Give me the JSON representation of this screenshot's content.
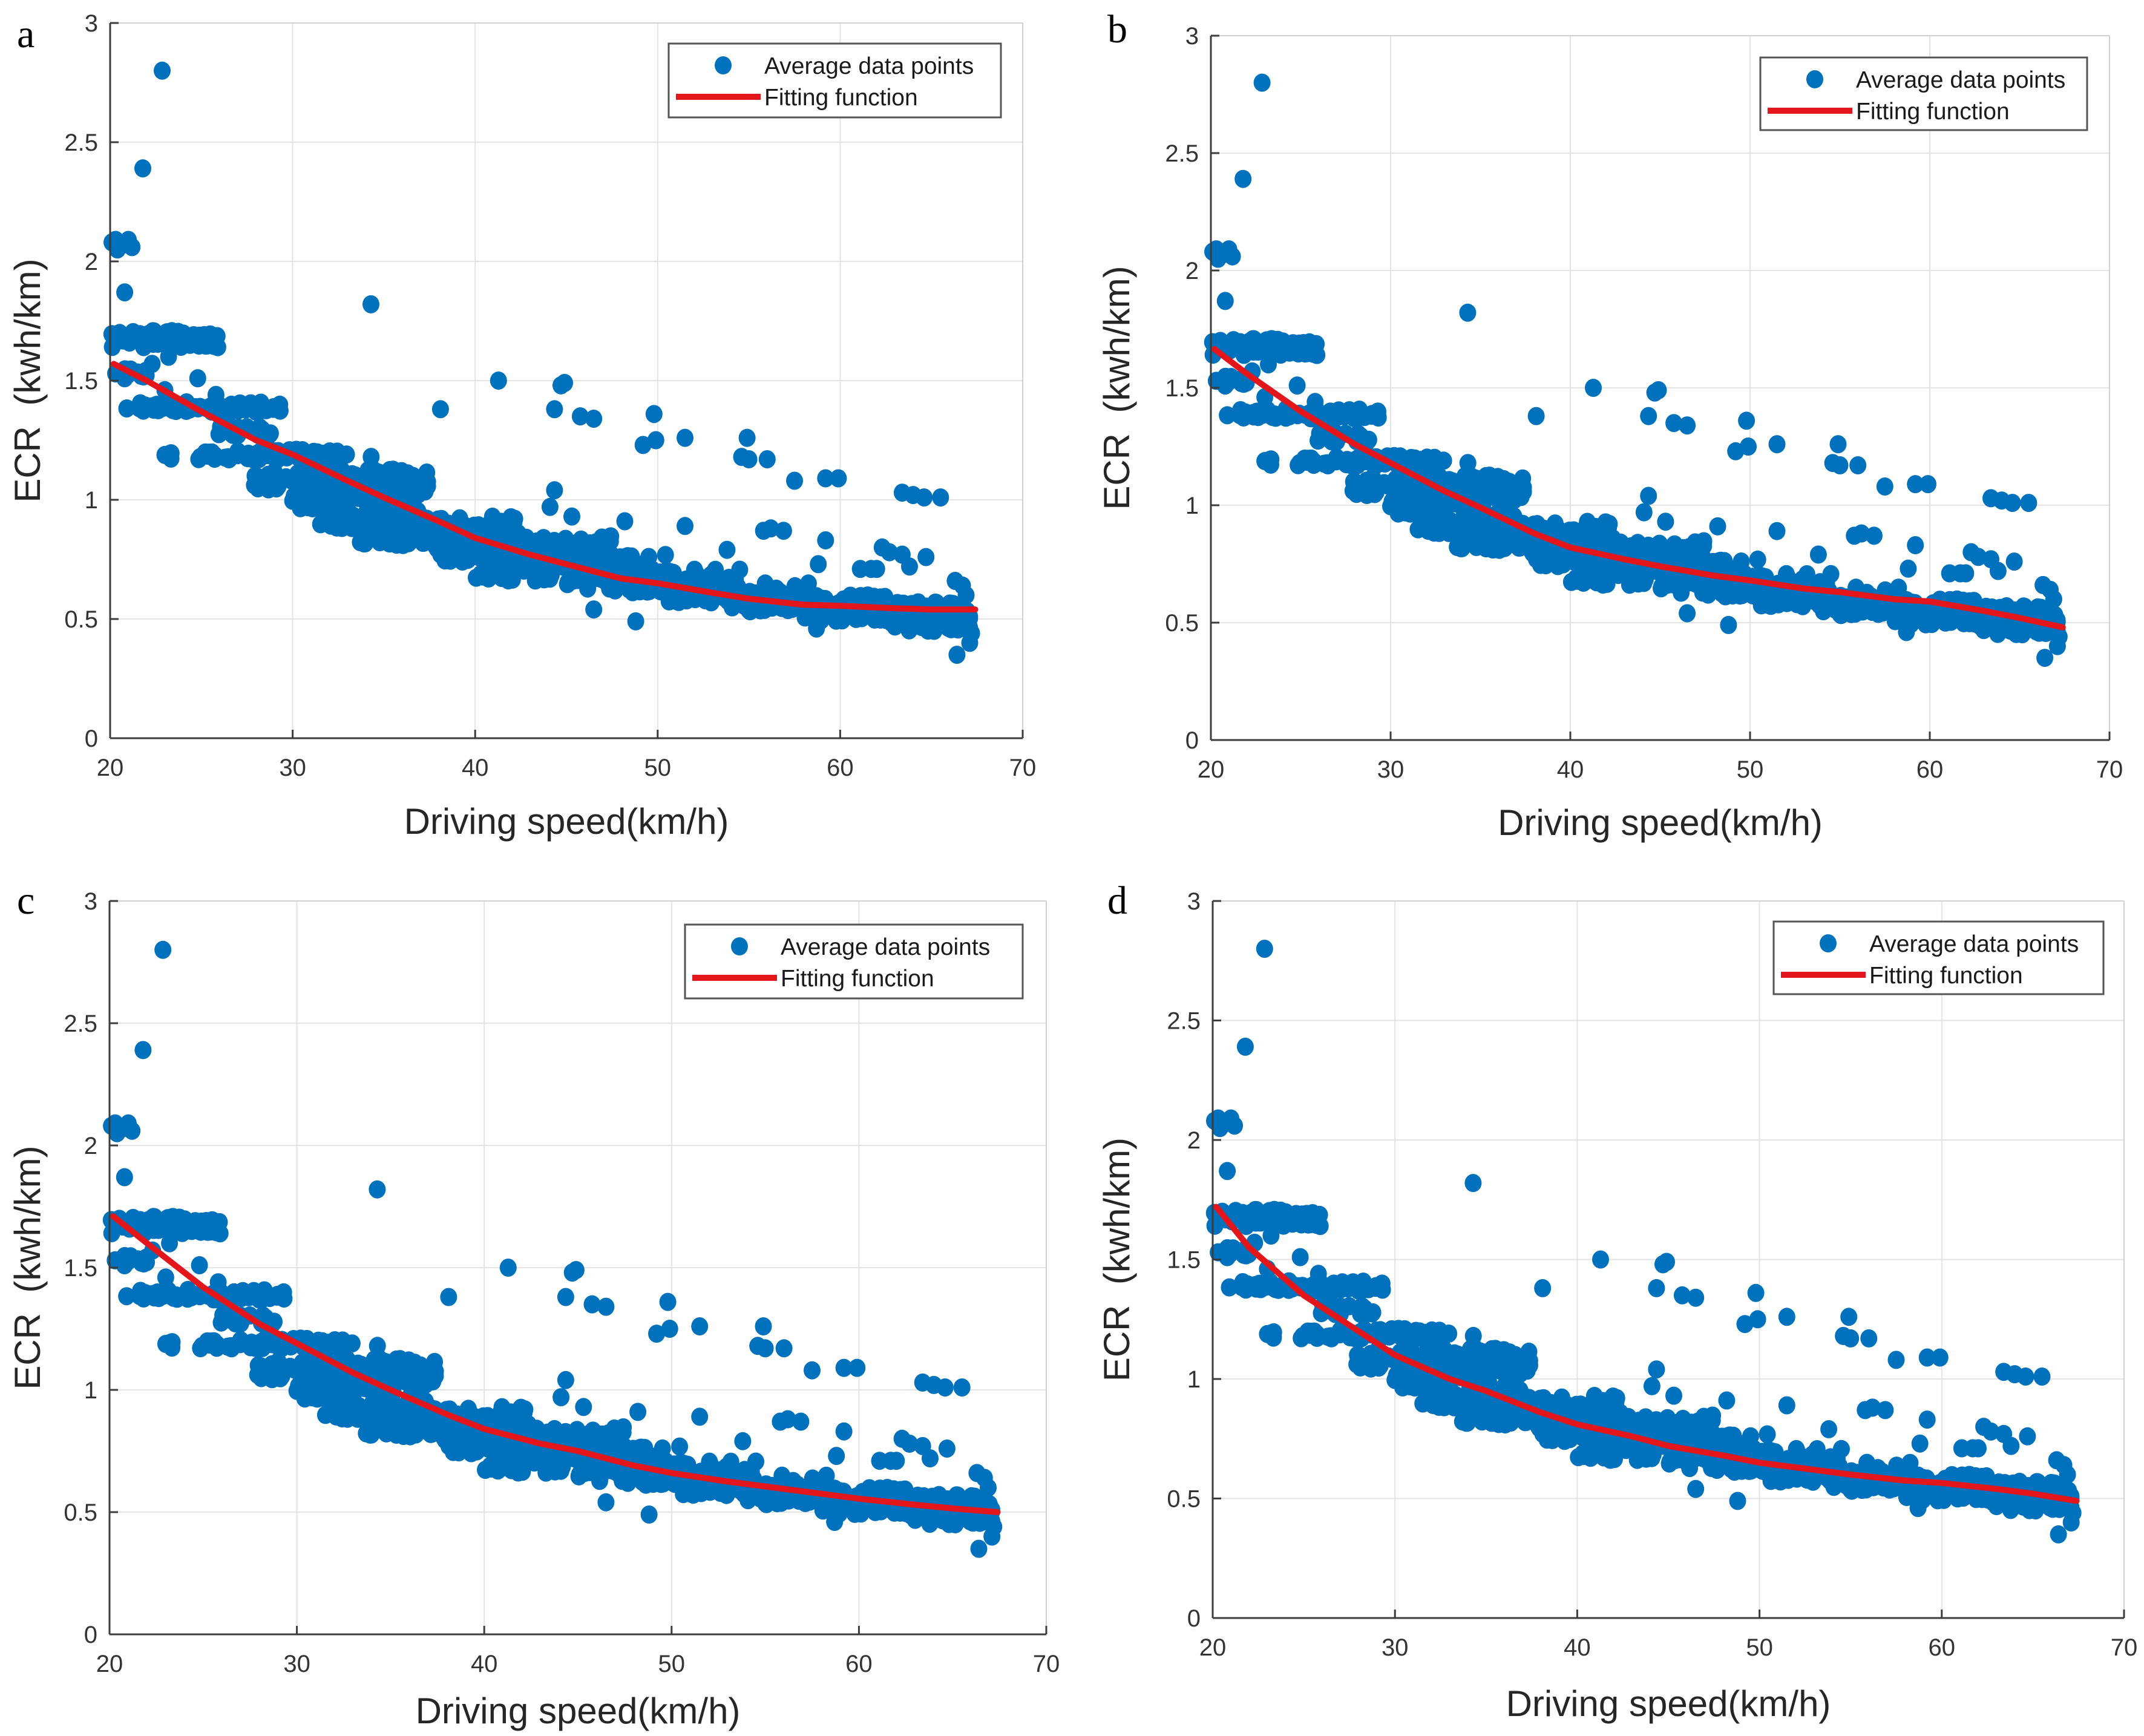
{
  "figure": {
    "panels": [
      {
        "id": "a",
        "letter": "a"
      },
      {
        "id": "b",
        "letter": "b"
      },
      {
        "id": "c",
        "letter": "c"
      },
      {
        "id": "d",
        "letter": "d"
      }
    ]
  },
  "colors": {
    "points": "#0072BD",
    "fit": "#E3161C",
    "grid": "#E3E3E3",
    "axis": "#3C3C3C",
    "text": "#333333"
  },
  "chart_data": [
    {
      "panel": "a",
      "type": "scatter",
      "title": "",
      "xlabel": "Driving speed(km/h)",
      "ylabel": "ECR  (kwh/km)",
      "xlim": [
        20,
        70
      ],
      "ylim": [
        0,
        3
      ],
      "xticks": [
        "20",
        "30",
        "40",
        "50",
        "60",
        "70"
      ],
      "yticks": [
        "0",
        "0.5",
        "1",
        "1.5",
        "2",
        "2.5",
        "3"
      ],
      "grid": true,
      "legend": {
        "position": "top-right",
        "entries": [
          "Average data points",
          "Fitting function"
        ]
      },
      "series_ref": "shared_points",
      "fit": {
        "name": "Fitting function",
        "x": [
          20.2,
          22,
          25,
          28,
          30,
          33,
          35,
          38,
          40,
          43,
          45,
          48,
          50,
          53,
          55,
          58,
          60,
          63,
          65,
          67.4
        ],
        "y": [
          1.57,
          1.5,
          1.37,
          1.25,
          1.19,
          1.08,
          1.01,
          0.91,
          0.84,
          0.77,
          0.73,
          0.67,
          0.65,
          0.61,
          0.585,
          0.56,
          0.555,
          0.545,
          0.54,
          0.54
        ]
      }
    },
    {
      "panel": "b",
      "type": "scatter",
      "title": "",
      "xlabel": "Driving speed(km/h)",
      "ylabel": "ECR  (kwh/km)",
      "xlim": [
        20,
        70
      ],
      "ylim": [
        0,
        3
      ],
      "xticks": [
        "20",
        "30",
        "40",
        "50",
        "60",
        "70"
      ],
      "yticks": [
        "0",
        "0.5",
        "1",
        "1.5",
        "2",
        "2.5",
        "3"
      ],
      "grid": true,
      "legend": {
        "position": "top-right",
        "entries": [
          "Average data points",
          "Fitting function"
        ]
      },
      "series_ref": "shared_points",
      "fit": {
        "name": "Fitting function",
        "x": [
          20.2,
          22,
          25,
          28,
          30,
          33,
          35,
          38,
          40,
          43,
          45,
          48,
          50,
          53,
          55,
          58,
          60,
          63,
          65,
          67.4
        ],
        "y": [
          1.665,
          1.56,
          1.4,
          1.26,
          1.18,
          1.06,
          0.99,
          0.88,
          0.82,
          0.77,
          0.74,
          0.7,
          0.68,
          0.645,
          0.63,
          0.6,
          0.59,
          0.55,
          0.52,
          0.48
        ]
      }
    },
    {
      "panel": "c",
      "type": "scatter",
      "title": "",
      "xlabel": "Driving speed(km/h)",
      "ylabel": "ECR  (kwh/km)",
      "xlim": [
        20,
        70
      ],
      "ylim": [
        0,
        3
      ],
      "xticks": [
        "20",
        "30",
        "40",
        "50",
        "60",
        "70"
      ],
      "yticks": [
        "0",
        "0.5",
        "1",
        "1.5",
        "2",
        "2.5",
        "3"
      ],
      "grid": true,
      "legend": {
        "position": "top-right",
        "entries": [
          "Average data points",
          "Fitting function"
        ]
      },
      "series_ref": "shared_points",
      "fit": {
        "name": "Fitting function",
        "x": [
          20.2,
          22,
          25,
          28,
          30,
          33,
          35,
          38,
          40,
          43,
          45,
          48,
          50,
          53,
          55,
          58,
          60,
          63,
          65,
          67.4
        ],
        "y": [
          1.71,
          1.6,
          1.42,
          1.27,
          1.19,
          1.07,
          1.0,
          0.9,
          0.84,
          0.78,
          0.75,
          0.69,
          0.66,
          0.625,
          0.605,
          0.575,
          0.555,
          0.53,
          0.515,
          0.5
        ]
      }
    },
    {
      "panel": "d",
      "type": "scatter",
      "title": "",
      "xlabel": "Driving speed(km/h)",
      "ylabel": "ECR  (kwh/km)",
      "xlim": [
        20,
        70
      ],
      "ylim": [
        0,
        3
      ],
      "xticks": [
        "20",
        "30",
        "40",
        "50",
        "60",
        "70"
      ],
      "yticks": [
        "0",
        "0.5",
        "1",
        "1.5",
        "2",
        "2.5",
        "3"
      ],
      "grid": true,
      "legend": {
        "position": "top-right",
        "entries": [
          "Average data points",
          "Fitting function"
        ]
      },
      "series_ref": "shared_points",
      "fit": {
        "name": "Fitting function",
        "x": [
          20.2,
          22,
          25,
          28,
          30,
          33,
          35,
          38,
          40,
          43,
          45,
          48,
          50,
          53,
          55,
          58,
          60,
          63,
          65,
          67.4
        ],
        "y": [
          1.72,
          1.55,
          1.35,
          1.2,
          1.1,
          1.0,
          0.95,
          0.86,
          0.81,
          0.76,
          0.72,
          0.68,
          0.65,
          0.62,
          0.6,
          0.575,
          0.565,
          0.54,
          0.52,
          0.49
        ]
      }
    }
  ],
  "shared_points": {
    "name": "Average data points",
    "outliers": [
      [
        22.85,
        2.8
      ],
      [
        21.79,
        2.39
      ],
      [
        20.8,
        1.87
      ],
      [
        34.29,
        1.82
      ],
      [
        20.1,
        2.08
      ],
      [
        20.4,
        2.05
      ],
      [
        20.7,
        2.07
      ],
      [
        21.0,
        2.09
      ],
      [
        21.2,
        2.06
      ],
      [
        20.3,
        2.09
      ],
      [
        41.28,
        1.5
      ],
      [
        44.9,
        1.49
      ],
      [
        44.7,
        1.48
      ],
      [
        38.1,
        1.38
      ],
      [
        44.35,
        1.38
      ],
      [
        45.76,
        1.35
      ],
      [
        46.5,
        1.34
      ],
      [
        49.8,
        1.36
      ],
      [
        49.2,
        1.23
      ],
      [
        49.9,
        1.25
      ],
      [
        51.5,
        1.26
      ],
      [
        54.9,
        1.26
      ],
      [
        54.6,
        1.18
      ],
      [
        55.0,
        1.17
      ],
      [
        56.0,
        1.17
      ],
      [
        57.5,
        1.08
      ],
      [
        59.2,
        1.09
      ],
      [
        59.9,
        1.09
      ],
      [
        63.4,
        1.03
      ],
      [
        64.0,
        1.02
      ],
      [
        64.6,
        1.01
      ],
      [
        65.5,
        1.01
      ],
      [
        44.35,
        1.04
      ],
      [
        44.1,
        0.97
      ],
      [
        45.3,
        0.93
      ],
      [
        48.2,
        0.91
      ],
      [
        51.5,
        0.89
      ],
      [
        55.8,
        0.87
      ],
      [
        56.2,
        0.88
      ],
      [
        56.9,
        0.87
      ],
      [
        53.8,
        0.79
      ],
      [
        59.2,
        0.83
      ],
      [
        58.8,
        0.73
      ],
      [
        62.3,
        0.8
      ],
      [
        62.7,
        0.78
      ],
      [
        63.4,
        0.77
      ],
      [
        63.8,
        0.72
      ],
      [
        64.7,
        0.76
      ],
      [
        61.1,
        0.71
      ],
      [
        61.7,
        0.71
      ],
      [
        62.0,
        0.71
      ],
      [
        66.3,
        0.66
      ],
      [
        66.9,
        0.6
      ],
      [
        66.7,
        0.64
      ],
      [
        46.5,
        0.54
      ],
      [
        48.8,
        0.49
      ],
      [
        58.7,
        0.46
      ],
      [
        66.4,
        0.35
      ],
      [
        67.1,
        0.4
      ],
      [
        67.2,
        0.44
      ],
      [
        32.95,
        1.19
      ],
      [
        34.3,
        1.18
      ],
      [
        24.8,
        1.51
      ],
      [
        21.7,
        1.52
      ],
      [
        20.3,
        1.53
      ],
      [
        20.8,
        1.51
      ],
      [
        22.3,
        1.57
      ],
      [
        23.2,
        1.6
      ],
      [
        23.0,
        1.46
      ],
      [
        25.8,
        1.44
      ]
    ],
    "bands": [
      {
        "x": [
          20.0,
          25.9
        ],
        "y": [
          1.64,
          1.71
        ],
        "n": 60
      },
      {
        "x": [
          20.2,
          22.0
        ],
        "y": [
          1.51,
          1.55
        ],
        "n": 8
      },
      {
        "x": [
          20.8,
          29.4
        ],
        "y": [
          1.37,
          1.41
        ],
        "n": 70
      },
      {
        "x": [
          25.4,
          29.0
        ],
        "y": [
          1.27,
          1.31
        ],
        "n": 28
      },
      {
        "x": [
          23.0,
          32.5
        ],
        "y": [
          1.17,
          1.21
        ],
        "n": 70
      },
      {
        "x": [
          27.8,
          37.5
        ],
        "y": [
          1.03,
          1.13
        ],
        "n": 90
      },
      {
        "x": [
          30.0,
          37.2
        ],
        "y": [
          0.93,
          1.06
        ],
        "n": 80
      },
      {
        "x": [
          31.5,
          35.0
        ],
        "y": [
          0.88,
          0.94
        ],
        "n": 18
      },
      {
        "x": [
          33.6,
          42.5
        ],
        "y": [
          0.81,
          0.93
        ],
        "n": 110
      },
      {
        "x": [
          37.5,
          47.5
        ],
        "y": [
          0.74,
          0.85
        ],
        "n": 110
      },
      {
        "x": [
          40.0,
          50.5
        ],
        "y": [
          0.66,
          0.77
        ],
        "n": 110
      },
      {
        "x": [
          45.0,
          54.5
        ],
        "y": [
          0.61,
          0.71
        ],
        "n": 100
      },
      {
        "x": [
          50.0,
          58.5
        ],
        "y": [
          0.57,
          0.65
        ],
        "n": 90
      },
      {
        "x": [
          54.0,
          62.5
        ],
        "y": [
          0.53,
          0.6
        ],
        "n": 90
      },
      {
        "x": [
          58.0,
          67.3
        ],
        "y": [
          0.49,
          0.57
        ],
        "n": 110
      },
      {
        "x": [
          62.0,
          67.3
        ],
        "y": [
          0.45,
          0.52
        ],
        "n": 50
      }
    ]
  }
}
